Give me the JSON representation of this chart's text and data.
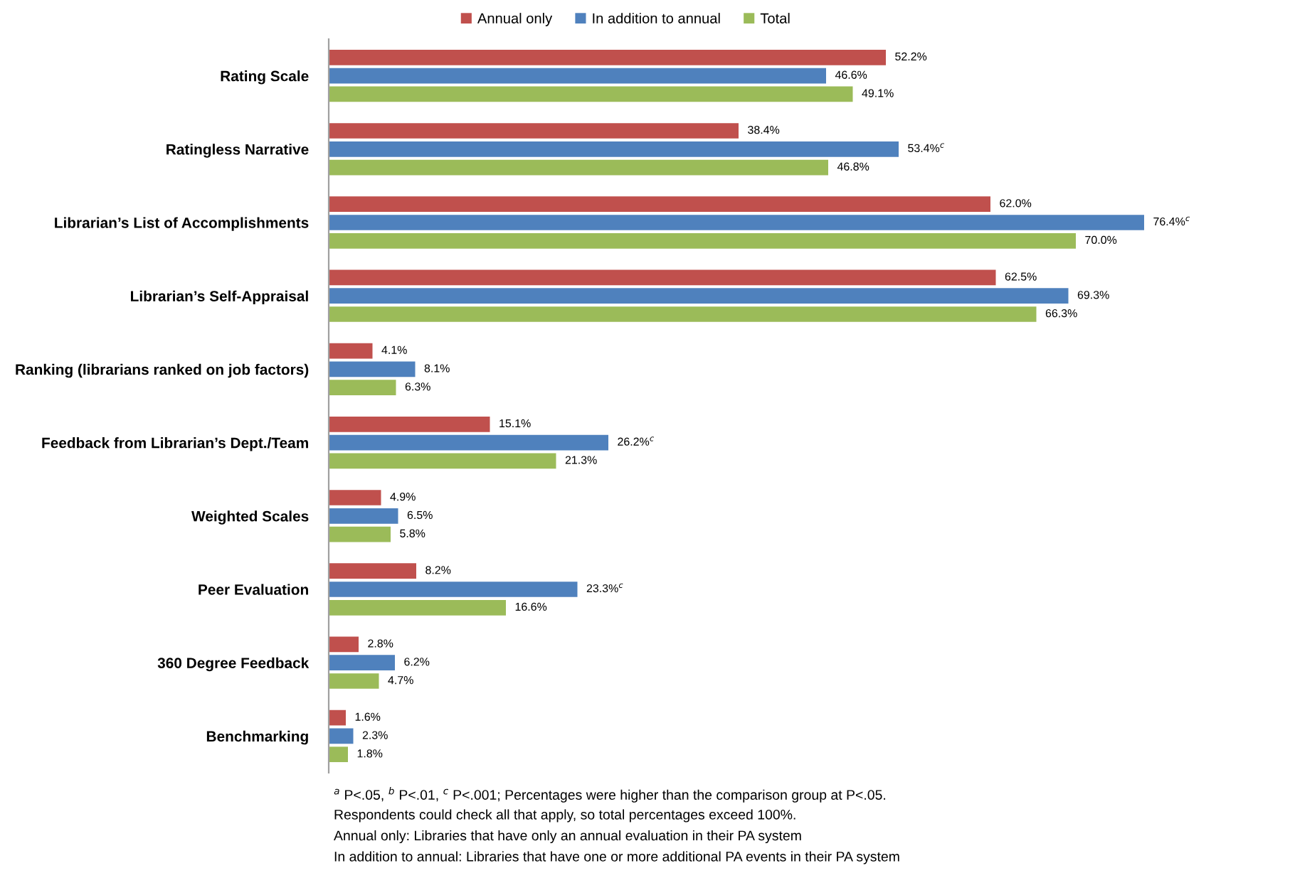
{
  "chart_data": {
    "type": "bar",
    "orientation": "horizontal",
    "categories": [
      "Rating Scale",
      "Ratingless Narrative",
      "Librarian’s List of Accomplishments",
      "Librarian’s Self-Appraisal",
      "Ranking (librarians ranked on job factors)",
      "Feedback from Librarian’s Dept./Team",
      "Weighted Scales",
      "Peer Evaluation",
      "360 Degree Feedback",
      "Benchmarking"
    ],
    "series": [
      {
        "name": "Annual only",
        "color": "#c0504d",
        "values": [
          52.2,
          38.4,
          62.0,
          62.5,
          4.1,
          15.1,
          4.9,
          8.2,
          2.8,
          1.6
        ],
        "value_labels": [
          "52.2%",
          "38.4%",
          "62.0%",
          "62.5%",
          "4.1%",
          "15.1%",
          "4.9%",
          "8.2%",
          "2.8%",
          "1.6%"
        ]
      },
      {
        "name": "In addition to annual",
        "color": "#4f81bd",
        "values": [
          46.6,
          53.4,
          76.4,
          69.3,
          8.1,
          26.2,
          6.5,
          23.3,
          6.2,
          2.3
        ],
        "value_labels": [
          "46.6%",
          "53.4%$^{c}$",
          "76.4%$^{c}$",
          "69.3%",
          "8.1%",
          "26.2%$^{c}$",
          "6.5%",
          "23.3%$^{c}$",
          "6.2%",
          "2.3%"
        ]
      },
      {
        "name": "Total",
        "color": "#9bbb59",
        "values": [
          49.1,
          46.8,
          70.0,
          66.3,
          6.3,
          21.3,
          5.8,
          16.6,
          4.7,
          1.8
        ],
        "value_labels": [
          "49.1%",
          "46.8%",
          "70.0%",
          "66.3%",
          "6.3%",
          "21.3%",
          "5.8%",
          "16.6%",
          "4.7%",
          "1.8%"
        ]
      }
    ],
    "tick_labels": "y",
    "legend": "top",
    "annotations": [
      "$^{a}$ P<.05, $^{b}$ P<.01, $^{c}$ P<.001; Percentages were higher than the comparison group at P<.05.",
      "Respondents could check all that apply, so total percentages exceed 100%.",
      "Annual only: Libraries that have only an annual evaluation in their PA system",
      "In addition to annual: Libraries that have one or more additional PA events in their PA system"
    ]
  }
}
